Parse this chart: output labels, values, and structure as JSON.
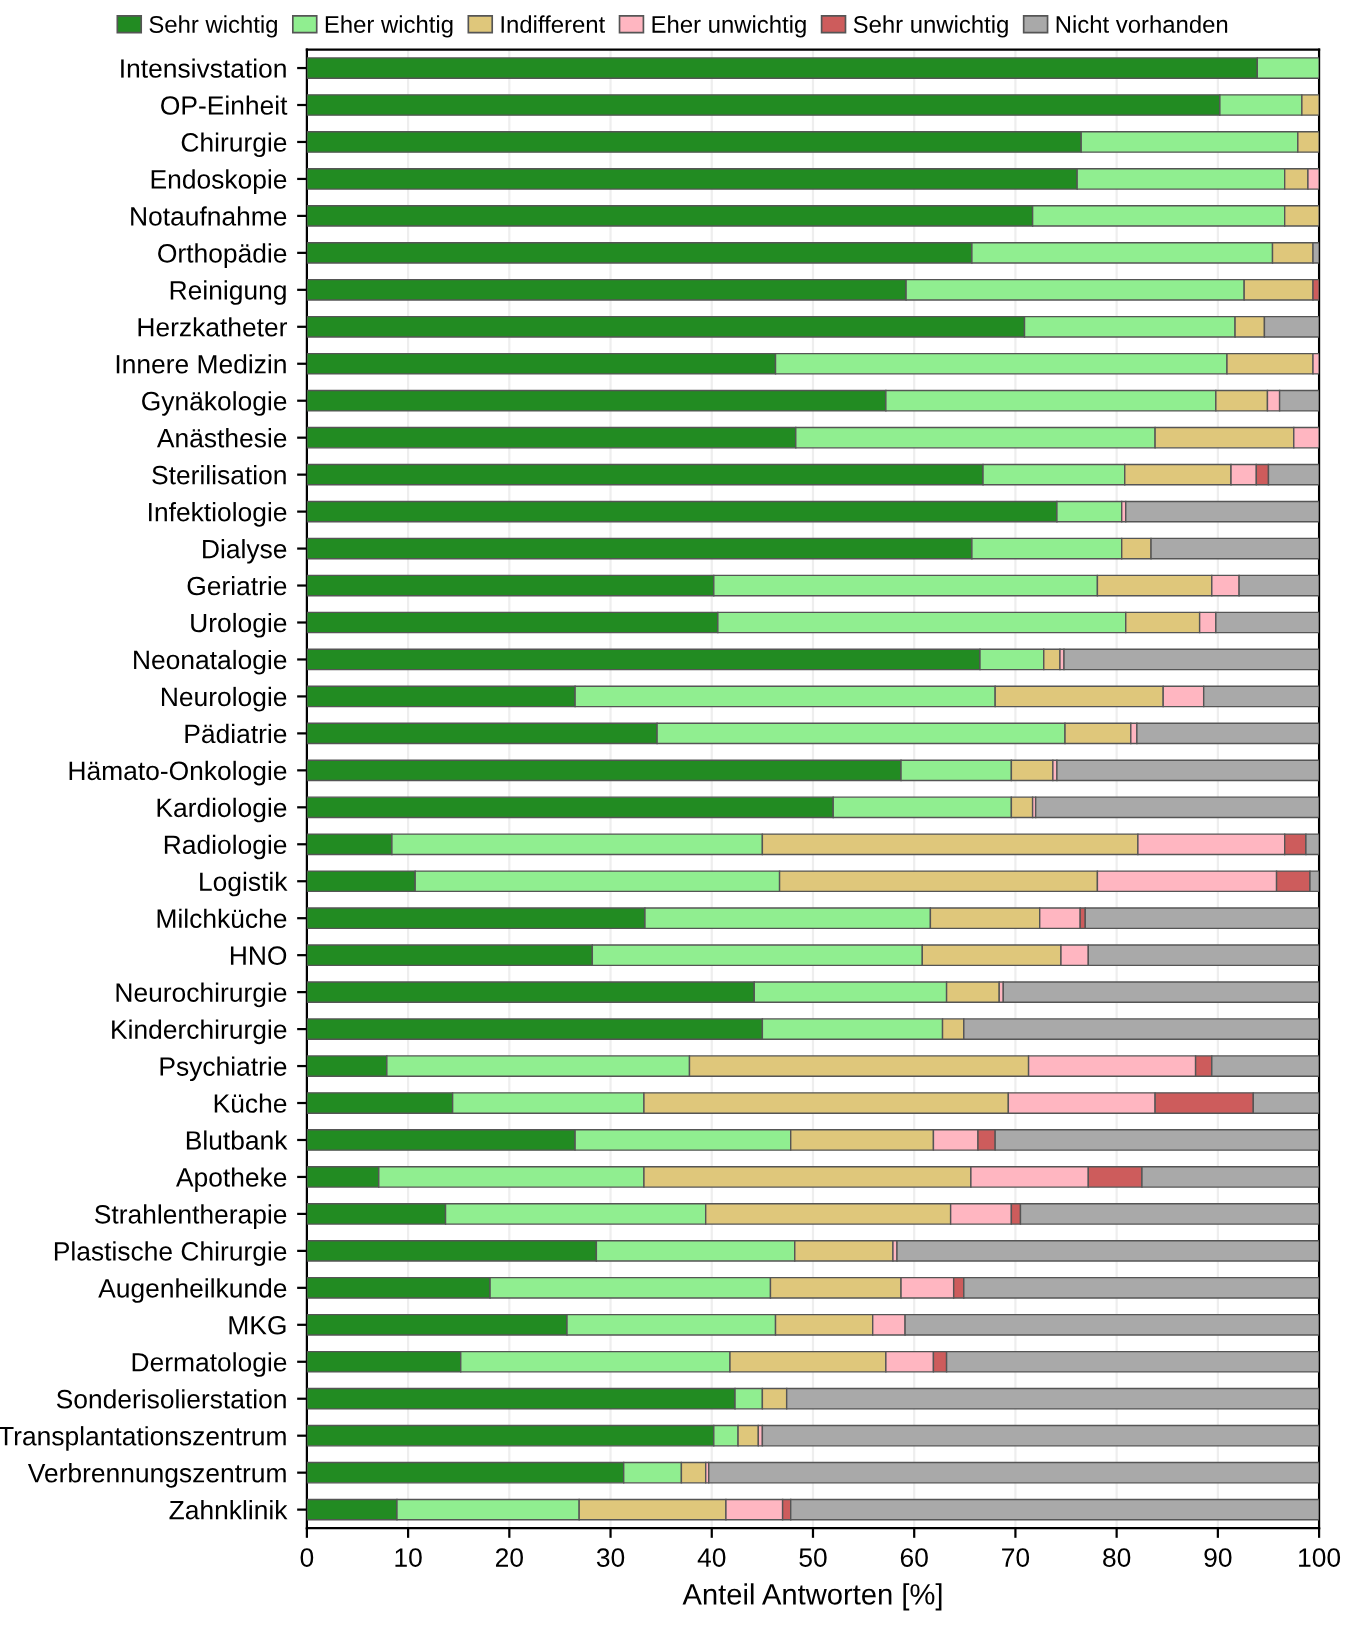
{
  "chart_data": {
    "type": "bar",
    "orientation": "horizontal",
    "stacked": true,
    "xlabel": "Anteil Antworten [%]",
    "xlim": [
      0,
      100
    ],
    "xticks": [
      0,
      10,
      20,
      30,
      40,
      50,
      60,
      70,
      80,
      90,
      100
    ],
    "grid": "x",
    "legend": "top",
    "categories": [
      "Intensivstation",
      "OP-Einheit",
      "Chirurgie",
      "Endoskopie",
      "Notaufnahme",
      "Orthopädie",
      "Reinigung",
      "Herzkatheter",
      "Innere Medizin",
      "Gynäkologie",
      "Anästhesie",
      "Sterilisation",
      "Infektiologie",
      "Dialyse",
      "Geriatrie",
      "Urologie",
      "Neonatalogie",
      "Neurologie",
      "Pädiatrie",
      "Hämato-Onkologie",
      "Kardiologie",
      "Radiologie",
      "Logistik",
      "Milchküche",
      "HNO",
      "Neurochirurgie",
      "Kinderchirurgie",
      "Psychiatrie",
      "Küche",
      "Blutbank",
      "Apotheke",
      "Strahlentherapie",
      "Plastische Chirurgie",
      "Augenheilkunde",
      "MKG",
      "Dermatologie",
      "Sonderisolierstation",
      "Transplantationszentrum",
      "Verbrennungszentrum",
      "Zahnklinik"
    ],
    "series": [
      {
        "name": "Sehr wichtig",
        "color": "#228b22",
        "values": [
          93.9,
          90.2,
          76.5,
          76.1,
          71.7,
          65.7,
          59.2,
          70.9,
          46.3,
          57.2,
          48.3,
          66.8,
          74.1,
          65.7,
          40.2,
          40.6,
          66.5,
          26.5,
          34.6,
          58.7,
          52.0,
          8.4,
          10.7,
          33.4,
          28.2,
          44.2,
          45.0,
          7.9,
          14.4,
          26.5,
          7.1,
          13.7,
          28.6,
          18.1,
          25.7,
          15.2,
          42.3,
          40.2,
          31.3,
          8.9
        ]
      },
      {
        "name": "Eher wichtig",
        "color": "#90ee90",
        "values": [
          6.1,
          8.1,
          21.4,
          20.5,
          24.9,
          29.7,
          33.4,
          20.8,
          44.6,
          32.6,
          35.5,
          14.0,
          6.4,
          14.8,
          37.9,
          40.3,
          6.3,
          41.5,
          40.3,
          10.9,
          17.6,
          36.6,
          36.0,
          28.2,
          32.6,
          19.0,
          17.8,
          29.9,
          18.9,
          21.3,
          26.2,
          25.7,
          19.6,
          27.7,
          20.6,
          26.6,
          2.7,
          2.4,
          5.7,
          18.0
        ]
      },
      {
        "name": "Indifferent",
        "color": "#dfc77b",
        "values": [
          0,
          1.7,
          2.1,
          2.3,
          3.4,
          4.0,
          6.8,
          2.9,
          8.5,
          5.1,
          13.7,
          10.5,
          0,
          2.9,
          11.3,
          7.3,
          1.6,
          16.6,
          6.5,
          4.1,
          2.1,
          37.1,
          31.4,
          10.8,
          13.7,
          5.2,
          2.1,
          33.5,
          36.0,
          14.1,
          32.3,
          24.2,
          9.7,
          12.9,
          9.6,
          15.4,
          2.4,
          2.0,
          2.4,
          14.5
        ]
      },
      {
        "name": "Eher unwichtig",
        "color": "#ffb6c1",
        "values": [
          0,
          0,
          0,
          1.1,
          0,
          0,
          0,
          0,
          0.6,
          1.2,
          2.5,
          2.5,
          0.4,
          0,
          2.7,
          1.6,
          0.4,
          4.0,
          0.6,
          0.4,
          0.3,
          14.5,
          17.7,
          4.0,
          2.7,
          0.4,
          0,
          16.5,
          14.5,
          4.4,
          11.6,
          6.0,
          0.4,
          5.2,
          3.2,
          4.7,
          0,
          0.4,
          0.3,
          5.6
        ]
      },
      {
        "name": "Sehr unwichtig",
        "color": "#cd5c5c",
        "values": [
          0,
          0,
          0,
          0,
          0,
          0,
          0.6,
          0,
          0,
          0,
          0,
          1.2,
          0,
          0,
          0,
          0,
          0,
          0,
          0,
          0,
          0,
          2.1,
          3.3,
          0.5,
          0,
          0,
          0,
          1.6,
          9.7,
          1.7,
          5.3,
          0.9,
          0,
          1.0,
          0,
          1.3,
          0,
          0,
          0,
          0.8
        ]
      },
      {
        "name": "Nicht vorhanden",
        "color": "#a9a9a9",
        "values": [
          0,
          0,
          0,
          0,
          0,
          0.6,
          0,
          5.4,
          0,
          3.9,
          0,
          5.0,
          19.1,
          16.6,
          7.9,
          10.2,
          25.2,
          11.4,
          18.0,
          25.9,
          28.0,
          1.3,
          0.9,
          23.1,
          22.8,
          31.2,
          35.1,
          10.6,
          6.5,
          32.0,
          17.5,
          29.5,
          41.7,
          35.1,
          40.9,
          36.8,
          52.6,
          55.0,
          60.3,
          52.2
        ]
      }
    ]
  }
}
